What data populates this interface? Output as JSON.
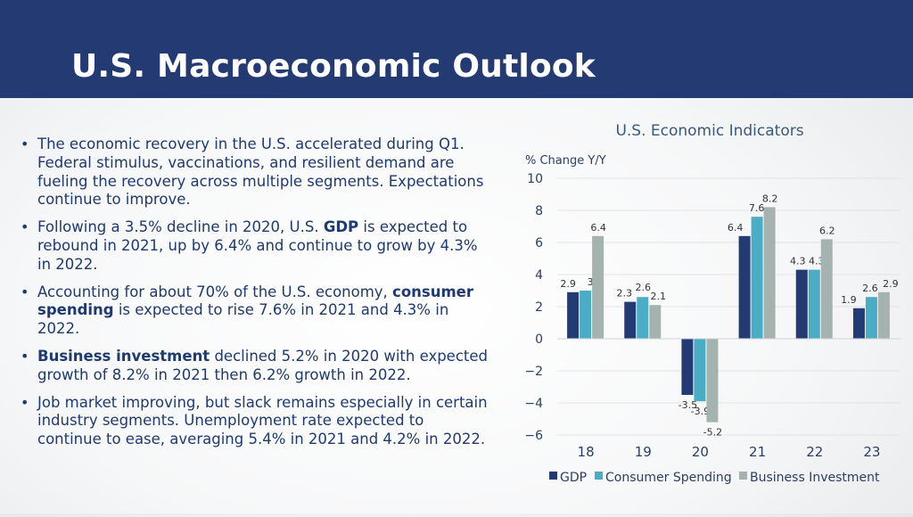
{
  "title": "U.S. Macroeconomic Outlook",
  "bullets": [
    {
      "parts": [
        {
          "text": "The economic recovery in the U.S. accelerated during Q1. Federal stimulus, vaccinations, and resilient demand are fueling the recovery across multiple segments. Expectations continue to improve.",
          "bold": false
        }
      ]
    },
    {
      "parts": [
        {
          "text": "Following a 3.5% decline in 2020, U.S. ",
          "bold": false
        },
        {
          "text": "GDP",
          "bold": true
        },
        {
          "text": " is expected to rebound in 2021, up by 6.4% and continue to grow by 4.3% in 2022.",
          "bold": false
        }
      ]
    },
    {
      "parts": [
        {
          "text": "Accounting for about 70% of the U.S. economy, ",
          "bold": false
        },
        {
          "text": "consumer spending",
          "bold": true
        },
        {
          "text": " is expected to rise 7.6% in 2021 and 4.3% in 2022.",
          "bold": false
        }
      ]
    },
    {
      "parts": [
        {
          "text": "Business investment",
          "bold": true
        },
        {
          "text": " declined 5.2% in 2020 with expected growth of 8.2% in 2021 then 6.2% growth in 2022.",
          "bold": false
        }
      ]
    },
    {
      "parts": [
        {
          "text": "Job market improving, but slack remains especially in certain industry segments. Unemployment rate expected to continue to ease, averaging 5.4% in 2021 and 4.2% in 2022.",
          "bold": false
        }
      ]
    }
  ],
  "chart_data": {
    "type": "bar",
    "title": "U.S. Economic Indicators",
    "ylabel": "% Change Y/Y",
    "xlabel": "",
    "categories": [
      "18",
      "19",
      "20",
      "21",
      "22",
      "23"
    ],
    "ylim": [
      -6,
      10
    ],
    "yticks": [
      10,
      8,
      6,
      4,
      2,
      0,
      -2,
      -4,
      -6
    ],
    "series": [
      {
        "name": "GDP",
        "color": "#243a73",
        "values": [
          2.9,
          2.3,
          -3.5,
          6.4,
          4.3,
          1.9
        ]
      },
      {
        "name": "Consumer Spending",
        "color": "#4bacc6",
        "values": [
          3,
          2.6,
          -3.9,
          7.6,
          4.3,
          2.6
        ]
      },
      {
        "name": "Business Investment",
        "color": "#a5b3af",
        "values": [
          6.4,
          2.1,
          -5.2,
          8.2,
          6.2,
          2.9
        ]
      }
    ],
    "grid": true,
    "legend": "bottom"
  }
}
